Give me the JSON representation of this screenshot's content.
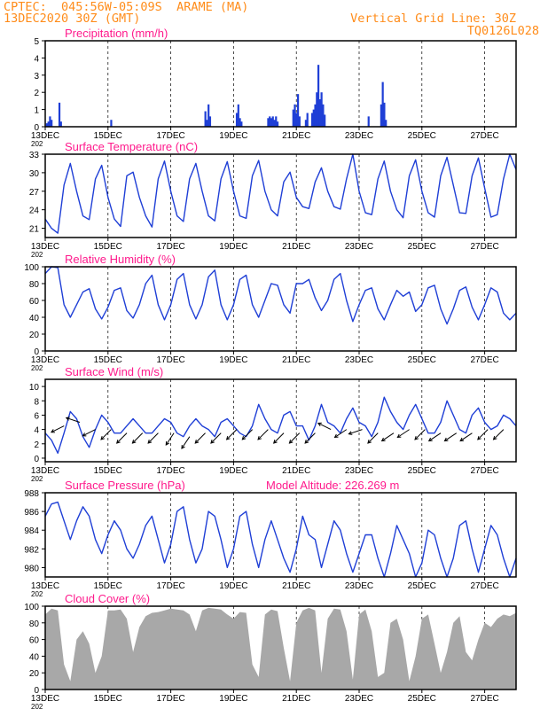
{
  "header": {
    "line1": "CPTEC:  045:56W-05:09S  ARAME (MA)",
    "line2": "13DEC2020 30Z (GMT)",
    "right1": "Vertical Grid Line: 30Z",
    "right2": "TQ0126L028"
  },
  "colors": {
    "header": "#ff8c1a",
    "panel_title": "#ff1a8c",
    "series": "#1f3fd6",
    "cloud_fill": "#a8a8a8",
    "frame": "#000000"
  },
  "x_axis": {
    "tick_labels": [
      "13DEC",
      "15DEC",
      "17DEC",
      "19DEC",
      "21DEC",
      "23DEC",
      "25DEC",
      "27DEC"
    ],
    "year_fragment": "202"
  },
  "chart_data": [
    {
      "id": "precip",
      "type": "bar",
      "title": "Precipitation (mm/h)",
      "ylim": [
        0,
        5
      ],
      "yticks": [
        0,
        1,
        2,
        3,
        4,
        5
      ],
      "xlim_days": [
        0,
        15
      ],
      "x_days": [
        0.05,
        0.1,
        0.15,
        0.2,
        0.45,
        0.5,
        2.1,
        5.1,
        5.15,
        5.2,
        5.25,
        6.1,
        6.15,
        6.2,
        6.25,
        7.1,
        7.15,
        7.2,
        7.25,
        7.3,
        7.35,
        7.4,
        7.9,
        7.95,
        8.0,
        8.05,
        8.1,
        8.3,
        8.35,
        8.5,
        8.55,
        8.6,
        8.65,
        8.7,
        8.75,
        8.8,
        8.85,
        8.9,
        10.3,
        10.7,
        10.75,
        10.8,
        10.85
      ],
      "values": [
        0.2,
        0.3,
        0.6,
        0.4,
        1.4,
        0.3,
        0.4,
        0.9,
        0.4,
        1.3,
        0.6,
        0.8,
        1.3,
        0.5,
        0.3,
        0.5,
        0.6,
        0.5,
        0.6,
        0.4,
        0.6,
        0.3,
        1.0,
        1.3,
        0.8,
        1.9,
        0.6,
        0.4,
        0.8,
        0.8,
        1.0,
        1.3,
        2.0,
        3.6,
        1.6,
        2.0,
        1.3,
        0.7,
        0.6,
        1.3,
        2.6,
        1.4,
        0.4
      ]
    },
    {
      "id": "temp",
      "type": "line",
      "title": "Surface Temperature (nC)",
      "ylim": [
        19.5,
        33
      ],
      "yticks": [
        21,
        24,
        27,
        30,
        33
      ],
      "xlim_days": [
        0,
        15
      ],
      "x_days": [
        0,
        0.2,
        0.4,
        0.6,
        0.8,
        1.0,
        1.2,
        1.4,
        1.6,
        1.8,
        2.0,
        2.2,
        2.4,
        2.6,
        2.8,
        3.0,
        3.2,
        3.4,
        3.6,
        3.8,
        4.0,
        4.2,
        4.4,
        4.6,
        4.8,
        5.0,
        5.2,
        5.4,
        5.6,
        5.8,
        6.0,
        6.2,
        6.4,
        6.6,
        6.8,
        7.0,
        7.2,
        7.4,
        7.6,
        7.8,
        8.0,
        8.2,
        8.4,
        8.6,
        8.8,
        9.0,
        9.2,
        9.4,
        9.6,
        9.8,
        10.0,
        10.2,
        10.4,
        10.6,
        10.8,
        11.0,
        11.2,
        11.4,
        11.6,
        11.8,
        12.0,
        12.2,
        12.4,
        12.6,
        12.8,
        13.0,
        13.2,
        13.4,
        13.6,
        13.8,
        14.0,
        14.2,
        14.4,
        14.6,
        14.8,
        15.0
      ],
      "values": [
        22.5,
        21,
        20.2,
        28,
        31.5,
        27,
        23,
        22.4,
        29,
        31.2,
        26,
        22.5,
        21.3,
        29.5,
        30.1,
        26,
        23,
        21.2,
        29,
        31.9,
        27,
        23,
        22.1,
        29,
        31.5,
        27,
        23,
        22.2,
        29,
        31.8,
        27,
        23,
        22.6,
        29.5,
        32,
        27,
        24,
        23,
        28.5,
        30.1,
        26,
        24.5,
        24.2,
        28.5,
        30.8,
        27,
        24.5,
        24.1,
        29,
        33,
        27,
        23.5,
        23.2,
        29,
        31.9,
        27,
        24,
        22.7,
        29.5,
        32.1,
        27,
        23.5,
        22.8,
        29.5,
        32.5,
        28,
        23.5,
        23.4,
        29.5,
        32.4,
        27.5,
        22.8,
        23.2,
        29,
        33,
        30.5
      ]
    },
    {
      "id": "rh",
      "type": "line",
      "title": "Relative Humidity (%)",
      "ylim": [
        0,
        100
      ],
      "yticks": [
        0,
        20,
        40,
        60,
        80,
        100
      ],
      "xlim_days": [
        0,
        15
      ],
      "x_days": [
        0,
        0.2,
        0.4,
        0.6,
        0.8,
        1.0,
        1.2,
        1.4,
        1.6,
        1.8,
        2.0,
        2.2,
        2.4,
        2.6,
        2.8,
        3.0,
        3.2,
        3.4,
        3.6,
        3.8,
        4.0,
        4.2,
        4.4,
        4.6,
        4.8,
        5.0,
        5.2,
        5.4,
        5.6,
        5.8,
        6.0,
        6.2,
        6.4,
        6.6,
        6.8,
        7.0,
        7.2,
        7.4,
        7.6,
        7.8,
        8.0,
        8.2,
        8.4,
        8.6,
        8.8,
        9.0,
        9.2,
        9.4,
        9.6,
        9.8,
        10.0,
        10.2,
        10.4,
        10.6,
        10.8,
        11.0,
        11.2,
        11.4,
        11.6,
        11.8,
        12.0,
        12.2,
        12.4,
        12.6,
        12.8,
        13.0,
        13.2,
        13.4,
        13.6,
        13.8,
        14.0,
        14.2,
        14.4,
        14.6,
        14.8,
        15.0
      ],
      "values": [
        92,
        100,
        99,
        55,
        40,
        55,
        70,
        74,
        50,
        38,
        52,
        72,
        75,
        48,
        39,
        55,
        80,
        90,
        55,
        37,
        55,
        85,
        92,
        55,
        38,
        55,
        88,
        96,
        55,
        37,
        55,
        85,
        90,
        55,
        40,
        60,
        80,
        78,
        55,
        45,
        80,
        80,
        85,
        63,
        48,
        60,
        85,
        92,
        60,
        35,
        55,
        72,
        75,
        50,
        37,
        55,
        72,
        65,
        70,
        47,
        55,
        75,
        78,
        50,
        32,
        50,
        72,
        76,
        52,
        37,
        55,
        75,
        70,
        45,
        37,
        45
      ]
    },
    {
      "id": "wind",
      "type": "line",
      "title": "Surface Wind (m/s)",
      "ylim": [
        -0.5,
        11
      ],
      "yticks": [
        0,
        2,
        4,
        6,
        8,
        10
      ],
      "xlim_days": [
        0,
        15
      ],
      "x_days": [
        0,
        0.2,
        0.4,
        0.6,
        0.8,
        1.0,
        1.2,
        1.4,
        1.6,
        1.8,
        2.0,
        2.2,
        2.4,
        2.6,
        2.8,
        3.0,
        3.2,
        3.4,
        3.6,
        3.8,
        4.0,
        4.2,
        4.4,
        4.6,
        4.8,
        5.0,
        5.2,
        5.4,
        5.6,
        5.8,
        6.0,
        6.2,
        6.4,
        6.6,
        6.8,
        7.0,
        7.2,
        7.4,
        7.6,
        7.8,
        8.0,
        8.2,
        8.4,
        8.6,
        8.8,
        9.0,
        9.2,
        9.4,
        9.6,
        9.8,
        10.0,
        10.2,
        10.4,
        10.6,
        10.8,
        11.0,
        11.2,
        11.4,
        11.6,
        11.8,
        12.0,
        12.2,
        12.4,
        12.6,
        12.8,
        13.0,
        13.2,
        13.4,
        13.6,
        13.8,
        14.0,
        14.2,
        14.4,
        14.6,
        14.8,
        15.0
      ],
      "values": [
        3.5,
        2.5,
        0.7,
        3.5,
        6.5,
        5.5,
        3.0,
        1.5,
        4.0,
        6.0,
        5.0,
        3.5,
        3.5,
        4.5,
        5.5,
        4.5,
        3.5,
        3.5,
        4.5,
        5.5,
        5.0,
        3.5,
        3.0,
        4.5,
        5.5,
        4.5,
        4.0,
        3.0,
        5.0,
        5.5,
        4.5,
        3.5,
        3.0,
        4.5,
        7.5,
        5.5,
        4.0,
        3.5,
        6.0,
        6.5,
        4.5,
        4.5,
        2.5,
        4.5,
        7.5,
        5.0,
        4.5,
        3.5,
        5.5,
        7.0,
        5.0,
        4.5,
        3.0,
        5.0,
        8.5,
        6.5,
        5.0,
        4.0,
        6.0,
        7.5,
        5.5,
        3.5,
        3.5,
        5.0,
        8.0,
        6.0,
        4.0,
        3.5,
        6.0,
        7.0,
        5.0,
        4.0,
        4.5,
        6.0,
        5.5,
        4.5
      ]
    },
    {
      "id": "pressure",
      "type": "line",
      "title": "Surface Pressure (hPa)",
      "subtitle": "Model Altitude: 226.269 m",
      "ylim": [
        979,
        988
      ],
      "yticks": [
        980,
        982,
        984,
        986,
        988
      ],
      "xlim_days": [
        0,
        15
      ],
      "x_days": [
        0,
        0.2,
        0.4,
        0.6,
        0.8,
        1.0,
        1.2,
        1.4,
        1.6,
        1.8,
        2.0,
        2.2,
        2.4,
        2.6,
        2.8,
        3.0,
        3.2,
        3.4,
        3.6,
        3.8,
        4.0,
        4.2,
        4.4,
        4.6,
        4.8,
        5.0,
        5.2,
        5.4,
        5.6,
        5.8,
        6.0,
        6.2,
        6.4,
        6.6,
        6.8,
        7.0,
        7.2,
        7.4,
        7.6,
        7.8,
        8.0,
        8.2,
        8.4,
        8.6,
        8.8,
        9.0,
        9.2,
        9.4,
        9.6,
        9.8,
        10.0,
        10.2,
        10.4,
        10.6,
        10.8,
        11.0,
        11.2,
        11.4,
        11.6,
        11.8,
        12.0,
        12.2,
        12.4,
        12.6,
        12.8,
        13.0,
        13.2,
        13.4,
        13.6,
        13.8,
        14.0,
        14.2,
        14.4,
        14.6,
        14.8,
        15.0
      ],
      "values": [
        985.5,
        986.8,
        987.0,
        985.0,
        983.0,
        985.0,
        986.5,
        985.5,
        983.0,
        981.5,
        983.5,
        985.0,
        984.0,
        982.0,
        981.0,
        982.5,
        984.5,
        985.5,
        983.0,
        980.5,
        982.5,
        986.0,
        986.5,
        983.0,
        980.5,
        982.0,
        986.0,
        985.5,
        983.0,
        980.0,
        982.0,
        985.5,
        986.0,
        982.5,
        980.0,
        983.0,
        985.0,
        983.0,
        981.0,
        979.5,
        982.0,
        985.5,
        983.5,
        983.0,
        980.0,
        982.5,
        985.0,
        984.0,
        981.5,
        979.5,
        981.5,
        983.5,
        983.5,
        981.0,
        979.0,
        981.5,
        984.5,
        983.0,
        981.5,
        979.0,
        980.5,
        984.0,
        983.5,
        981.0,
        979.0,
        981.0,
        984.5,
        985.0,
        982.0,
        979.5,
        982.0,
        984.5,
        983.5,
        981.0,
        979.0,
        981.0
      ]
    },
    {
      "id": "cloud",
      "type": "area",
      "title": "Cloud Cover (%)",
      "ylim": [
        0,
        100
      ],
      "yticks": [
        0,
        20,
        40,
        60,
        80,
        100
      ],
      "xlim_days": [
        0,
        15
      ],
      "x_days": [
        0,
        0.2,
        0.4,
        0.6,
        0.8,
        1.0,
        1.2,
        1.4,
        1.6,
        1.8,
        2.0,
        2.2,
        2.4,
        2.6,
        2.8,
        3.0,
        3.2,
        3.4,
        3.6,
        3.8,
        4.0,
        4.2,
        4.4,
        4.6,
        4.8,
        5.0,
        5.2,
        5.4,
        5.6,
        5.8,
        6.0,
        6.2,
        6.4,
        6.6,
        6.8,
        7.0,
        7.2,
        7.4,
        7.6,
        7.8,
        8.0,
        8.2,
        8.4,
        8.6,
        8.8,
        9.0,
        9.2,
        9.4,
        9.6,
        9.8,
        10.0,
        10.2,
        10.4,
        10.6,
        10.8,
        11.0,
        11.2,
        11.4,
        11.6,
        11.8,
        12.0,
        12.2,
        12.4,
        12.6,
        12.8,
        13.0,
        13.2,
        13.4,
        13.6,
        13.8,
        14.0,
        14.2,
        14.4,
        14.6,
        14.8,
        15.0
      ],
      "values": [
        90,
        97,
        95,
        30,
        10,
        60,
        70,
        55,
        20,
        40,
        95,
        95,
        96,
        85,
        45,
        75,
        88,
        92,
        93,
        95,
        97,
        96,
        95,
        90,
        70,
        95,
        98,
        97,
        96,
        90,
        85,
        93,
        92,
        30,
        15,
        90,
        96,
        94,
        50,
        10,
        80,
        95,
        98,
        95,
        20,
        85,
        97,
        96,
        70,
        12,
        90,
        96,
        70,
        15,
        20,
        80,
        85,
        60,
        10,
        40,
        85,
        90,
        55,
        20,
        45,
        80,
        88,
        45,
        35,
        60,
        80,
        75,
        85,
        90,
        88,
        92
      ]
    }
  ],
  "wind_arrows": {
    "x_days": [
      0.6,
      1.1,
      1.6,
      2.1,
      2.6,
      3.1,
      3.6,
      4.1,
      4.6,
      5.1,
      5.6,
      6.1,
      6.6,
      7.1,
      7.6,
      8.1,
      8.6,
      9.1,
      9.6,
      10.1,
      10.6,
      11.1,
      11.6,
      12.1,
      12.6,
      13.1,
      13.6,
      14.1,
      14.6
    ],
    "y_values": [
      4.5,
      5.0,
      4.0,
      4.0,
      3.5,
      3.5,
      3.5,
      3.5,
      3.0,
      3.5,
      3.5,
      4.0,
      4.0,
      4.0,
      3.5,
      3.5,
      3.5,
      4.0,
      4.0,
      4.0,
      3.5,
      3.5,
      4.0,
      4.0,
      3.5,
      3.5,
      3.5,
      4.0,
      4.0
    ],
    "u": [
      -2,
      -3,
      -2,
      -2,
      -2,
      -2,
      -2,
      -2,
      -2,
      -3,
      -3,
      -3,
      -3,
      -3,
      -3,
      -3,
      -3,
      -2,
      -3,
      -3,
      -3,
      -3,
      -3,
      -3,
      -3,
      -3,
      -3,
      -3,
      -2
    ],
    "v": [
      -1,
      1,
      -1,
      -2,
      -2,
      -2,
      -2,
      -3,
      -3,
      -3,
      -3,
      -3,
      -3,
      -3,
      -3,
      -3,
      -3,
      1,
      -2,
      -1,
      -3,
      -2,
      -2,
      -3,
      -2,
      -2,
      -2,
      -3,
      -2
    ]
  }
}
